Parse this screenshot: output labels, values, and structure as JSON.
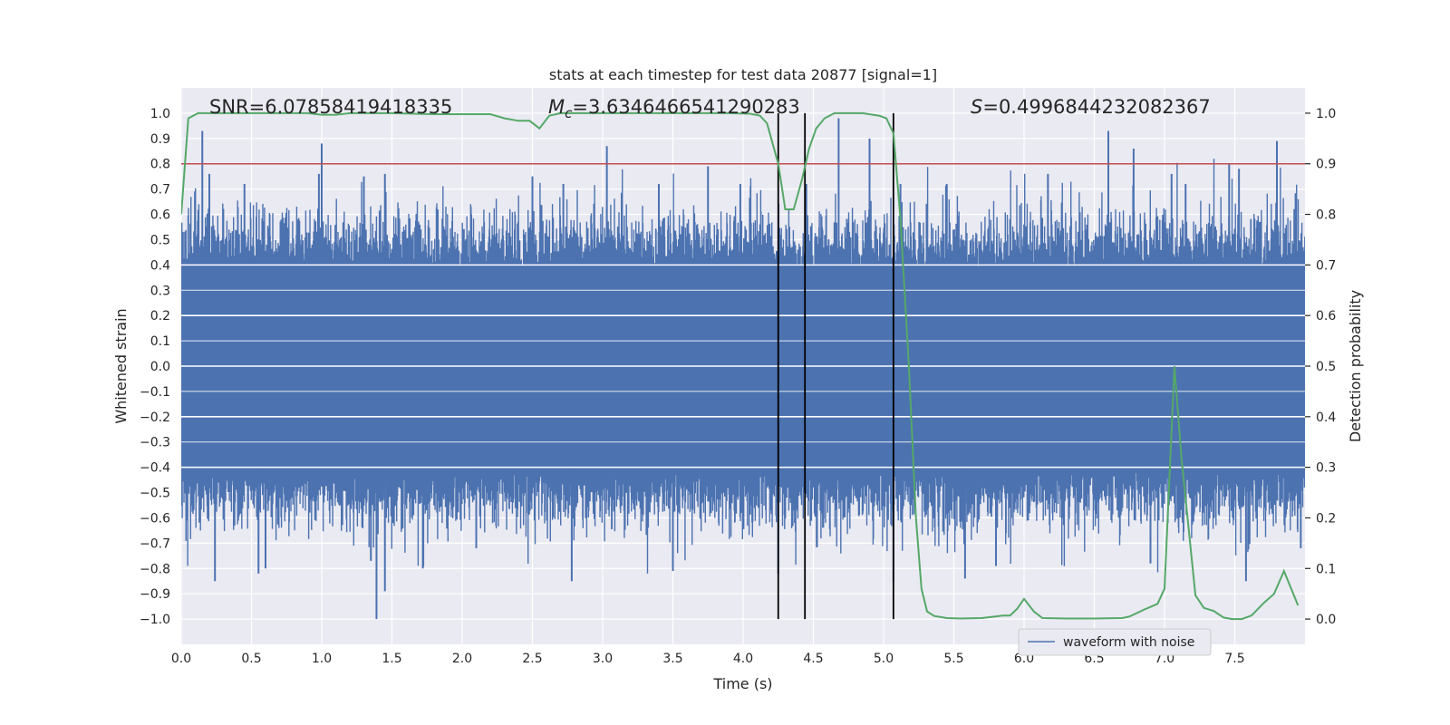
{
  "chart_data": {
    "type": "line",
    "title": "stats at each timestep for test data 20877 [signal=1]",
    "xlabel": "Time (s)",
    "ylabel": "Whitened strain",
    "ylabel_right": "Detection probability",
    "xlim": [
      0.0,
      8.0
    ],
    "ylim": [
      -1.1,
      1.1
    ],
    "ylim_right": [
      -0.05,
      1.05
    ],
    "x_ticks": [
      0.0,
      0.5,
      1.0,
      1.5,
      2.0,
      2.5,
      3.0,
      3.5,
      4.0,
      4.5,
      5.0,
      5.5,
      6.0,
      6.5,
      7.0,
      7.5
    ],
    "x_tick_labels": [
      "0.0",
      "0.5",
      "1.0",
      "1.5",
      "2.0",
      "2.5",
      "3.0",
      "3.5",
      "4.0",
      "4.5",
      "5.0",
      "5.5",
      "6.0",
      "6.5",
      "7.0",
      "7.5"
    ],
    "y_ticks": [
      1.0,
      0.9,
      0.8,
      0.7,
      0.6,
      0.5,
      0.4,
      0.3,
      0.2,
      0.1,
      0.0,
      -0.1,
      -0.2,
      -0.3,
      -0.4,
      -0.5,
      -0.6,
      -0.7,
      -0.8,
      -0.9,
      -1.0
    ],
    "y_tick_labels": [
      "1.0",
      "0.9",
      "0.8",
      "0.7",
      "0.6",
      "0.5",
      "0.4",
      "0.3",
      "0.2",
      "0.1",
      "0.0",
      "−0.1",
      "−0.2",
      "−0.3",
      "−0.4",
      "−0.5",
      "−0.6",
      "−0.7",
      "−0.8",
      "−0.9",
      "−1.0"
    ],
    "y_right_ticks": [
      1.0,
      0.9,
      0.8,
      0.7,
      0.6,
      0.5,
      0.4,
      0.3,
      0.2,
      0.1,
      0.0
    ],
    "y_right_tick_labels": [
      "1.0",
      "0.9",
      "0.8",
      "0.7",
      "0.6",
      "0.5",
      "0.4",
      "0.3",
      "0.2",
      "0.1",
      "0.0"
    ],
    "annotations": {
      "snr": "SNR=6.07858419418335",
      "mc_symbol": "M",
      "mc_sub": "c",
      "mc_value": "=3.6346466541290283",
      "s_symbol": "S",
      "s_value": "=0.4996844232082367"
    },
    "legend": {
      "label": "waveform with noise",
      "location": "lower-right"
    },
    "threshold": {
      "value": 0.9,
      "axis": "right",
      "color": "#c44e52"
    },
    "vertical_lines": [
      4.25,
      4.44,
      5.07
    ],
    "waveform": {
      "name": "waveform with noise",
      "color": "#4c72b0",
      "fill_top": 0.38,
      "fill_bottom": -0.41,
      "peak_up": [
        {
          "x": 0.15,
          "y": 0.93
        },
        {
          "x": 1.0,
          "y": 0.88
        },
        {
          "x": 0.2,
          "y": 0.76
        },
        {
          "x": 0.45,
          "y": 0.72
        },
        {
          "x": 0.98,
          "y": 0.76
        },
        {
          "x": 1.3,
          "y": 0.75
        },
        {
          "x": 1.45,
          "y": 0.76
        },
        {
          "x": 2.5,
          "y": 0.75
        },
        {
          "x": 2.72,
          "y": 0.72
        },
        {
          "x": 3.03,
          "y": 0.87
        },
        {
          "x": 3.4,
          "y": 0.72
        },
        {
          "x": 3.75,
          "y": 0.79
        },
        {
          "x": 3.98,
          "y": 0.72
        },
        {
          "x": 4.45,
          "y": 0.72
        },
        {
          "x": 4.68,
          "y": 0.98
        },
        {
          "x": 4.9,
          "y": 0.9
        },
        {
          "x": 5.12,
          "y": 0.72
        },
        {
          "x": 5.45,
          "y": 0.72
        },
        {
          "x": 6.17,
          "y": 0.76
        },
        {
          "x": 6.6,
          "y": 0.93
        },
        {
          "x": 6.78,
          "y": 0.86
        },
        {
          "x": 7.05,
          "y": 0.76
        },
        {
          "x": 7.15,
          "y": 0.72
        },
        {
          "x": 7.46,
          "y": 0.8
        },
        {
          "x": 7.53,
          "y": 0.78
        },
        {
          "x": 7.8,
          "y": 0.89
        }
      ],
      "peak_down": [
        {
          "x": 0.24,
          "y": -0.85
        },
        {
          "x": 0.55,
          "y": -0.82
        },
        {
          "x": 0.6,
          "y": -0.8
        },
        {
          "x": 1.35,
          "y": -0.77
        },
        {
          "x": 1.39,
          "y": -1.0
        },
        {
          "x": 1.45,
          "y": -0.89
        },
        {
          "x": 1.72,
          "y": -0.8
        },
        {
          "x": 2.1,
          "y": -0.72
        },
        {
          "x": 2.78,
          "y": -0.85
        },
        {
          "x": 3.5,
          "y": -0.81
        },
        {
          "x": 4.25,
          "y": -0.82
        },
        {
          "x": 5.07,
          "y": -0.85
        },
        {
          "x": 5.58,
          "y": -0.84
        },
        {
          "x": 5.8,
          "y": -0.79
        },
        {
          "x": 6.9,
          "y": -0.78
        },
        {
          "x": 7.58,
          "y": -0.85
        },
        {
          "x": 7.97,
          "y": -0.72
        }
      ]
    },
    "probability": {
      "name": "Detection probability",
      "color": "#55a868",
      "x": [
        0.0,
        0.05,
        0.12,
        0.3,
        0.5,
        0.7,
        0.9,
        1.0,
        1.1,
        1.2,
        1.5,
        1.8,
        2.0,
        2.2,
        2.3,
        2.4,
        2.48,
        2.55,
        2.62,
        2.7,
        2.9,
        3.1,
        3.3,
        3.5,
        3.7,
        3.9,
        4.05,
        4.12,
        4.17,
        4.22,
        4.25,
        4.3,
        4.36,
        4.42,
        4.47,
        4.52,
        4.58,
        4.65,
        4.72,
        4.85,
        4.97,
        5.02,
        5.07,
        5.12,
        5.18,
        5.23,
        5.27,
        5.31,
        5.36,
        5.45,
        5.55,
        5.7,
        5.85,
        5.9,
        5.95,
        6.0,
        6.07,
        6.13,
        6.3,
        6.5,
        6.7,
        6.75,
        6.85,
        6.95,
        7.0,
        7.07,
        7.12,
        7.22,
        7.28,
        7.35,
        7.42,
        7.48,
        7.55,
        7.62,
        7.7,
        7.78,
        7.85,
        7.95
      ],
      "y": [
        0.8,
        0.99,
        1.0,
        1.0,
        1.0,
        1.0,
        1.0,
        0.997,
        0.997,
        1.0,
        1.0,
        0.998,
        0.998,
        0.998,
        0.99,
        0.985,
        0.985,
        0.97,
        0.995,
        1.0,
        1.0,
        1.0,
        1.0,
        1.0,
        1.0,
        1.0,
        0.999,
        0.995,
        0.98,
        0.93,
        0.9,
        0.81,
        0.81,
        0.87,
        0.93,
        0.97,
        0.99,
        1.0,
        1.0,
        1.0,
        0.995,
        0.99,
        0.96,
        0.79,
        0.5,
        0.2,
        0.06,
        0.015,
        0.006,
        0.002,
        0.001,
        0.002,
        0.007,
        0.007,
        0.02,
        0.04,
        0.015,
        0.002,
        0.001,
        0.001,
        0.002,
        0.005,
        0.018,
        0.03,
        0.06,
        0.5,
        0.32,
        0.047,
        0.022,
        0.016,
        0.003,
        0.0,
        0.0,
        0.007,
        0.03,
        0.05,
        0.095,
        0.027
      ]
    },
    "noise_seed": 20877,
    "noise_samples_per_second": 340
  }
}
